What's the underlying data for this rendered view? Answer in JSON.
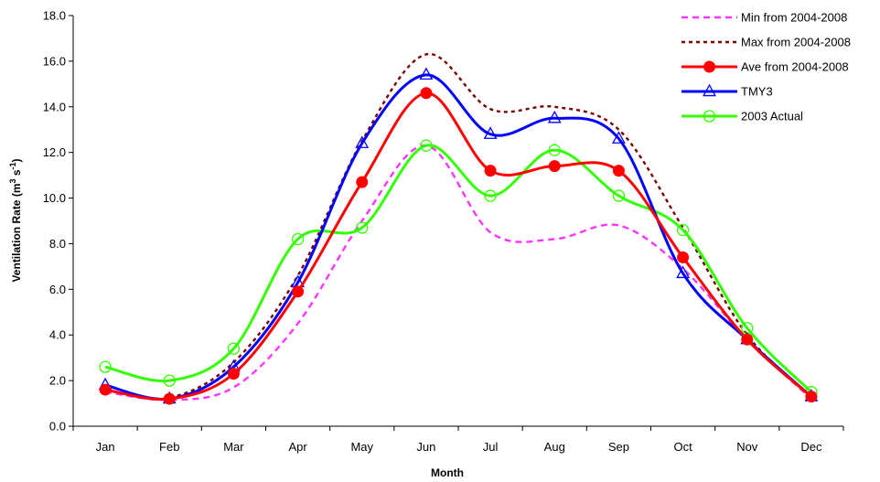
{
  "chart_data": {
    "type": "line",
    "title": "",
    "xlabel": "Month",
    "ylabel_main": "Ventilation Rate (m",
    "ylabel_sup1": "3",
    "ylabel_mid": " s",
    "ylabel_sup2": "-1",
    "ylabel_end": ")",
    "ylim": [
      0,
      18
    ],
    "yticks": [
      0,
      2,
      4,
      6,
      8,
      10,
      12,
      14,
      16,
      18
    ],
    "ytick_labels": [
      "0.0",
      "2.0",
      "4.0",
      "6.0",
      "8.0",
      "10.0",
      "12.0",
      "14.0",
      "16.0",
      "18.0"
    ],
    "categories": [
      "Jan",
      "Feb",
      "Mar",
      "Apr",
      "May",
      "Jun",
      "Jul",
      "Aug",
      "Sep",
      "Oct",
      "Nov",
      "Dec"
    ],
    "grid": false,
    "legend_position": "top-right",
    "series": [
      {
        "name": "Min from 2004-2008",
        "color": "#ff33ff",
        "style": "dashed",
        "marker": "none",
        "values": [
          1.5,
          1.15,
          1.7,
          4.5,
          9.0,
          12.3,
          8.5,
          8.2,
          8.8,
          6.9,
          3.8,
          1.2
        ]
      },
      {
        "name": "Max from 2004-2008",
        "color": "#7a0000",
        "style": "dotted",
        "marker": "none",
        "values": [
          1.6,
          1.25,
          2.8,
          6.6,
          12.5,
          16.3,
          13.9,
          14.0,
          13.0,
          8.7,
          4.0,
          1.3
        ]
      },
      {
        "name": "Ave from 2004-2008",
        "color": "#ff0000",
        "style": "solid",
        "marker": "filled-circle",
        "values": [
          1.6,
          1.2,
          2.3,
          5.9,
          10.7,
          14.6,
          11.2,
          11.4,
          11.2,
          7.4,
          3.8,
          1.3
        ]
      },
      {
        "name": "TMY3",
        "color": "#0000ff",
        "style": "solid",
        "marker": "open-triangle",
        "values": [
          1.8,
          1.2,
          2.6,
          6.3,
          12.4,
          15.4,
          12.8,
          13.5,
          12.6,
          6.7,
          3.8,
          1.3
        ]
      },
      {
        "name": "2003 Actual",
        "color": "#33ff00",
        "style": "solid",
        "marker": "open-circle",
        "values": [
          2.6,
          2.0,
          3.4,
          8.2,
          8.7,
          12.3,
          10.1,
          12.1,
          10.1,
          8.6,
          4.3,
          1.5
        ]
      }
    ]
  }
}
